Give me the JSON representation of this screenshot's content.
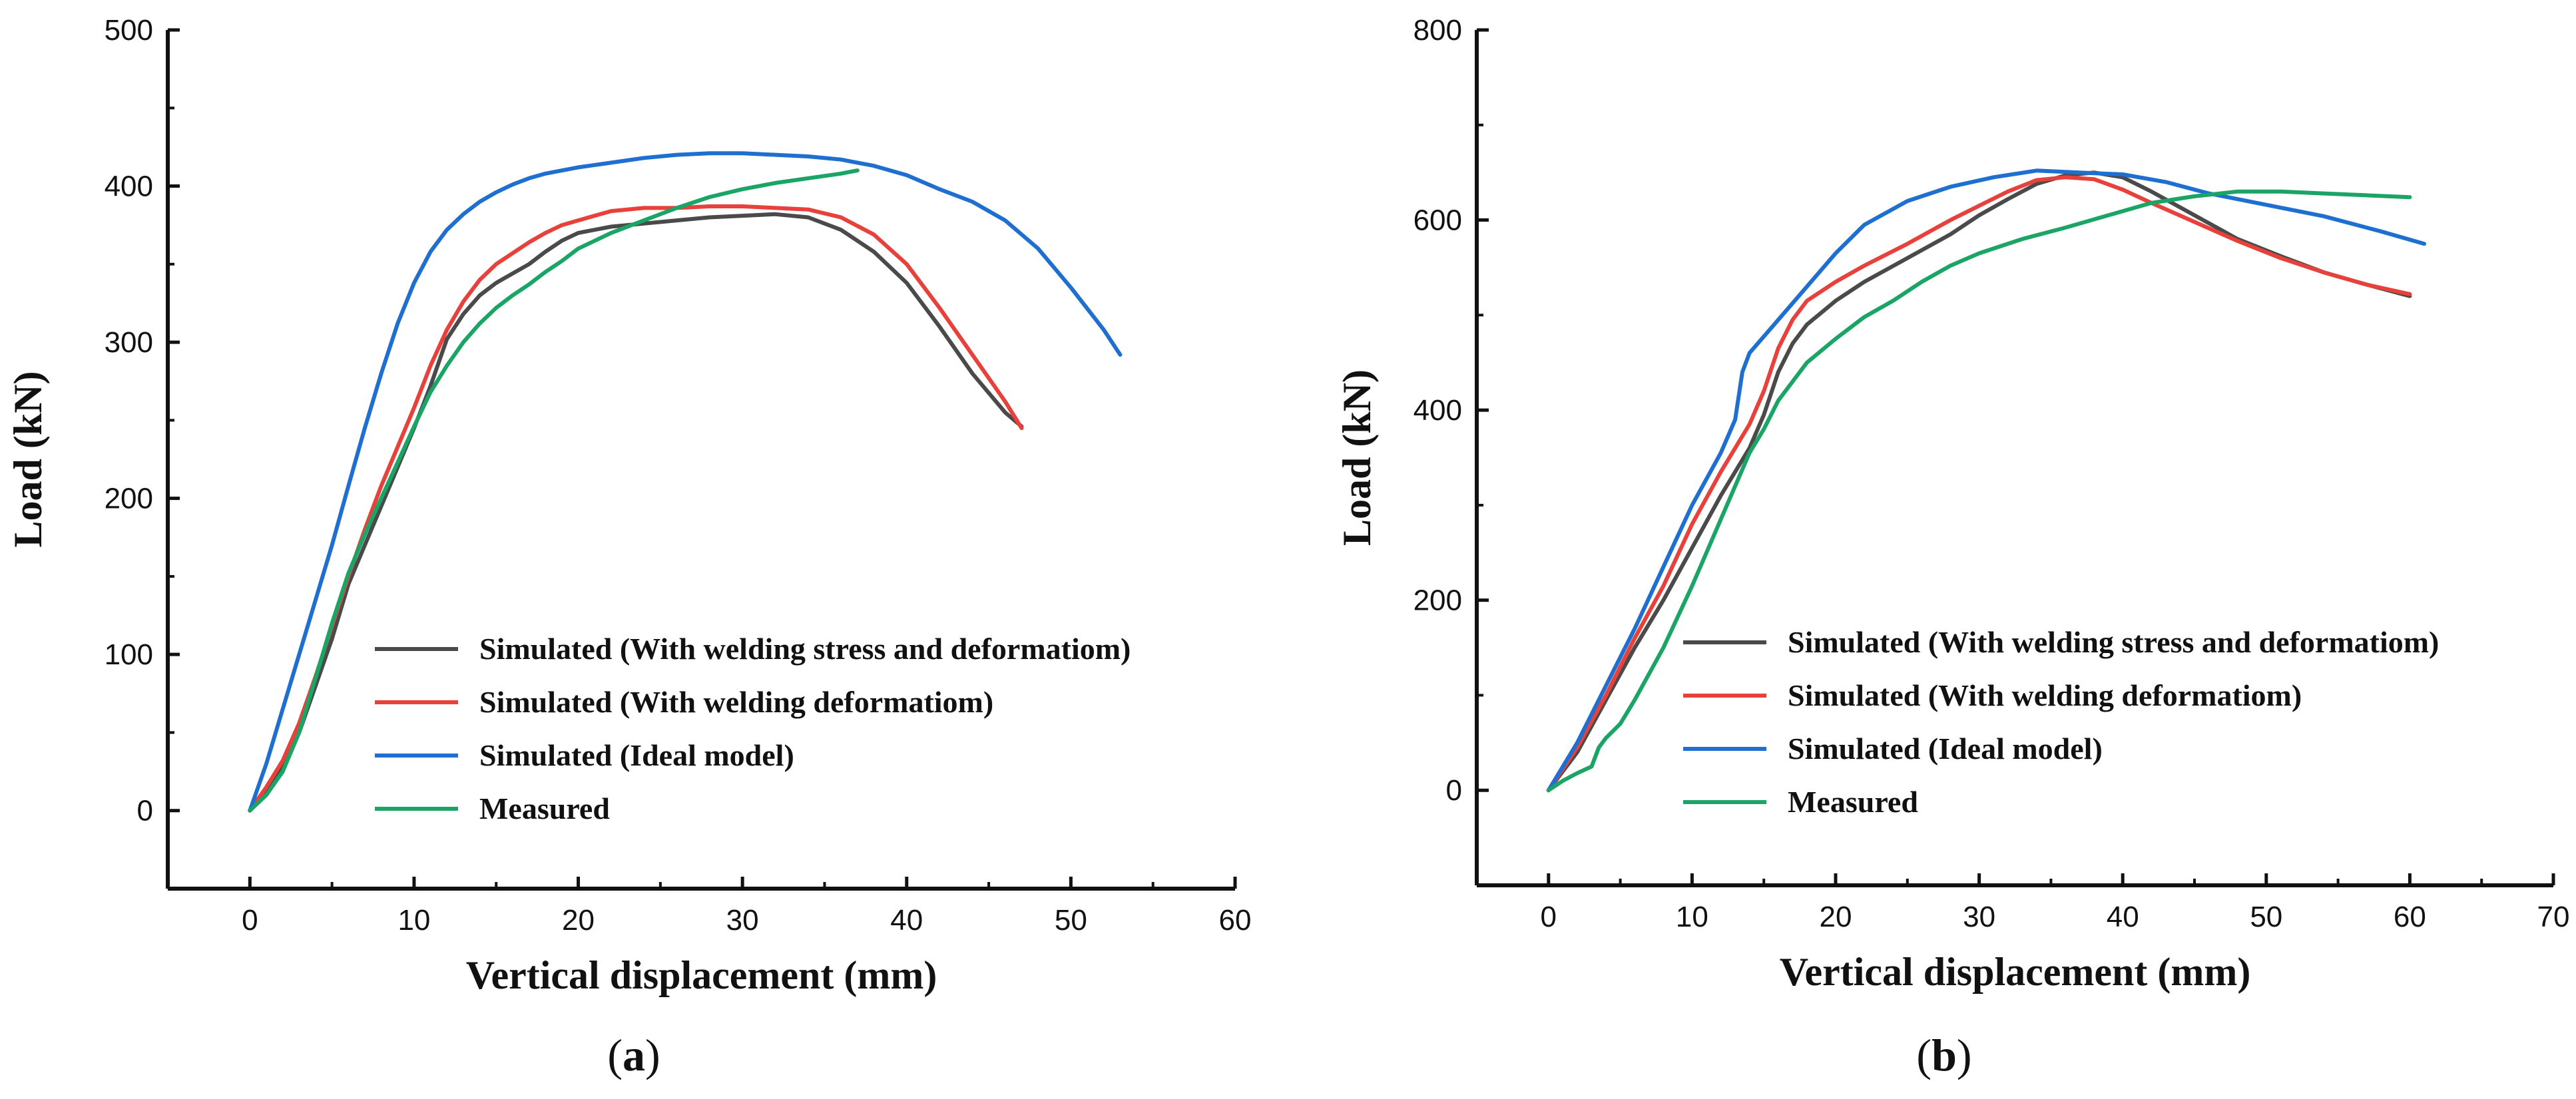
{
  "chart_data": [
    {
      "type": "line",
      "panel_label": "a",
      "xlabel": "Vertical displacement (mm)",
      "ylabel": "Load (kN)",
      "xlim": [
        -5,
        60
      ],
      "ylim": [
        -50,
        500
      ],
      "xticks": [
        0,
        10,
        20,
        30,
        40,
        50,
        60
      ],
      "yticks": [
        0,
        100,
        200,
        300,
        400,
        500
      ],
      "legend_position": "bottom-right",
      "series": [
        {
          "name": "Simulated (With welding stress and deformatiom)",
          "color": "#4a4a4a",
          "points": [
            [
              0,
              0
            ],
            [
              1,
              12
            ],
            [
              2,
              28
            ],
            [
              3,
              50
            ],
            [
              4,
              80
            ],
            [
              5,
              110
            ],
            [
              6,
              145
            ],
            [
              7,
              170
            ],
            [
              8,
              195
            ],
            [
              9,
              220
            ],
            [
              10,
              245
            ],
            [
              11,
              272
            ],
            [
              12,
              302
            ],
            [
              13,
              318
            ],
            [
              14,
              330
            ],
            [
              15,
              338
            ],
            [
              16,
              344
            ],
            [
              17,
              350
            ],
            [
              18,
              358
            ],
            [
              19,
              365
            ],
            [
              20,
              370
            ],
            [
              22,
              374
            ],
            [
              24,
              376
            ],
            [
              26,
              378
            ],
            [
              28,
              380
            ],
            [
              30,
              381
            ],
            [
              32,
              382
            ],
            [
              34,
              380
            ],
            [
              36,
              372
            ],
            [
              38,
              358
            ],
            [
              40,
              338
            ],
            [
              42,
              310
            ],
            [
              44,
              280
            ],
            [
              46,
              255
            ],
            [
              47,
              246
            ]
          ]
        },
        {
          "name": "Simulated (With welding deformatiom)",
          "color": "#e8413b",
          "points": [
            [
              0,
              0
            ],
            [
              1,
              15
            ],
            [
              2,
              32
            ],
            [
              3,
              56
            ],
            [
              4,
              86
            ],
            [
              5,
              118
            ],
            [
              6,
              150
            ],
            [
              7,
              180
            ],
            [
              8,
              208
            ],
            [
              9,
              233
            ],
            [
              10,
              258
            ],
            [
              11,
              285
            ],
            [
              12,
              308
            ],
            [
              13,
              326
            ],
            [
              14,
              340
            ],
            [
              15,
              350
            ],
            [
              16,
              357
            ],
            [
              17,
              364
            ],
            [
              18,
              370
            ],
            [
              19,
              375
            ],
            [
              20,
              378
            ],
            [
              22,
              384
            ],
            [
              24,
              386
            ],
            [
              26,
              386
            ],
            [
              28,
              387
            ],
            [
              30,
              387
            ],
            [
              32,
              386
            ],
            [
              34,
              385
            ],
            [
              36,
              380
            ],
            [
              38,
              369
            ],
            [
              40,
              350
            ],
            [
              42,
              322
            ],
            [
              44,
              292
            ],
            [
              46,
              262
            ],
            [
              47,
              245
            ]
          ]
        },
        {
          "name": "Simulated (Ideal model)",
          "color": "#1f6fd0",
          "points": [
            [
              0,
              0
            ],
            [
              1,
              30
            ],
            [
              2,
              65
            ],
            [
              3,
              100
            ],
            [
              4,
              135
            ],
            [
              5,
              170
            ],
            [
              6,
              208
            ],
            [
              7,
              245
            ],
            [
              8,
              280
            ],
            [
              9,
              312
            ],
            [
              10,
              338
            ],
            [
              11,
              358
            ],
            [
              12,
              372
            ],
            [
              13,
              382
            ],
            [
              14,
              390
            ],
            [
              15,
              396
            ],
            [
              16,
              401
            ],
            [
              17,
              405
            ],
            [
              18,
              408
            ],
            [
              20,
              412
            ],
            [
              22,
              415
            ],
            [
              24,
              418
            ],
            [
              26,
              420
            ],
            [
              28,
              421
            ],
            [
              30,
              421
            ],
            [
              32,
              420
            ],
            [
              34,
              419
            ],
            [
              36,
              417
            ],
            [
              38,
              413
            ],
            [
              40,
              407
            ],
            [
              42,
              398
            ],
            [
              44,
              390
            ],
            [
              46,
              378
            ],
            [
              48,
              360
            ],
            [
              50,
              335
            ],
            [
              52,
              308
            ],
            [
              53,
              292
            ]
          ]
        },
        {
          "name": "Measured",
          "color": "#1aa566",
          "points": [
            [
              0,
              0
            ],
            [
              1,
              10
            ],
            [
              2,
              25
            ],
            [
              3,
              50
            ],
            [
              4,
              85
            ],
            [
              5,
              120
            ],
            [
              6,
              152
            ],
            [
              7,
              177
            ],
            [
              8,
              200
            ],
            [
              9,
              223
            ],
            [
              10,
              246
            ],
            [
              11,
              268
            ],
            [
              12,
              285
            ],
            [
              13,
              300
            ],
            [
              14,
              312
            ],
            [
              15,
              322
            ],
            [
              16,
              330
            ],
            [
              17,
              337
            ],
            [
              18,
              345
            ],
            [
              19,
              352
            ],
            [
              20,
              360
            ],
            [
              22,
              370
            ],
            [
              24,
              378
            ],
            [
              26,
              386
            ],
            [
              28,
              393
            ],
            [
              30,
              398
            ],
            [
              32,
              402
            ],
            [
              34,
              405
            ],
            [
              36,
              408
            ],
            [
              37,
              410
            ]
          ]
        }
      ]
    },
    {
      "type": "line",
      "panel_label": "b",
      "xlabel": "Vertical displacement (mm)",
      "ylabel": "Load (kN)",
      "xlim": [
        -5,
        70
      ],
      "ylim": [
        -100,
        800
      ],
      "xticks": [
        0,
        10,
        20,
        30,
        40,
        50,
        60,
        70
      ],
      "yticks": [
        0,
        200,
        400,
        600,
        800
      ],
      "legend_position": "bottom-right",
      "series": [
        {
          "name": "Simulated (With welding stress and deformatiom)",
          "color": "#4a4a4a",
          "points": [
            [
              0,
              0
            ],
            [
              2,
              40
            ],
            [
              4,
              95
            ],
            [
              6,
              150
            ],
            [
              8,
              200
            ],
            [
              10,
              255
            ],
            [
              12,
              310
            ],
            [
              14,
              360
            ],
            [
              15,
              395
            ],
            [
              16,
              440
            ],
            [
              17,
              470
            ],
            [
              18,
              490
            ],
            [
              20,
              515
            ],
            [
              22,
              535
            ],
            [
              25,
              560
            ],
            [
              28,
              585
            ],
            [
              30,
              605
            ],
            [
              32,
              622
            ],
            [
              34,
              638
            ],
            [
              36,
              647
            ],
            [
              38,
              650
            ],
            [
              40,
              645
            ],
            [
              42,
              630
            ],
            [
              45,
              605
            ],
            [
              48,
              580
            ],
            [
              51,
              562
            ],
            [
              54,
              545
            ],
            [
              57,
              532
            ],
            [
              60,
              520
            ]
          ]
        },
        {
          "name": "Simulated (With welding deformatiom)",
          "color": "#e8413b",
          "points": [
            [
              0,
              0
            ],
            [
              2,
              45
            ],
            [
              4,
              100
            ],
            [
              6,
              160
            ],
            [
              8,
              215
            ],
            [
              10,
              280
            ],
            [
              12,
              335
            ],
            [
              14,
              385
            ],
            [
              15,
              420
            ],
            [
              16,
              465
            ],
            [
              17,
              495
            ],
            [
              18,
              515
            ],
            [
              20,
              535
            ],
            [
              22,
              552
            ],
            [
              25,
              575
            ],
            [
              28,
              600
            ],
            [
              30,
              615
            ],
            [
              32,
              630
            ],
            [
              34,
              642
            ],
            [
              36,
              645
            ],
            [
              38,
              643
            ],
            [
              40,
              632
            ],
            [
              42,
              618
            ],
            [
              45,
              598
            ],
            [
              48,
              578
            ],
            [
              51,
              560
            ],
            [
              54,
              545
            ],
            [
              57,
              532
            ],
            [
              60,
              522
            ]
          ]
        },
        {
          "name": "Simulated (Ideal model)",
          "color": "#1f6fd0",
          "points": [
            [
              0,
              0
            ],
            [
              2,
              50
            ],
            [
              4,
              110
            ],
            [
              6,
              170
            ],
            [
              8,
              235
            ],
            [
              10,
              300
            ],
            [
              12,
              355
            ],
            [
              13,
              390
            ],
            [
              13.5,
              440
            ],
            [
              14,
              460
            ],
            [
              16,
              495
            ],
            [
              18,
              530
            ],
            [
              20,
              565
            ],
            [
              22,
              595
            ],
            [
              25,
              620
            ],
            [
              28,
              635
            ],
            [
              31,
              645
            ],
            [
              34,
              652
            ],
            [
              37,
              650
            ],
            [
              40,
              648
            ],
            [
              43,
              640
            ],
            [
              46,
              628
            ],
            [
              50,
              616
            ],
            [
              54,
              604
            ],
            [
              58,
              588
            ],
            [
              61,
              575
            ]
          ]
        },
        {
          "name": "Measured",
          "color": "#1aa566",
          "points": [
            [
              0,
              0
            ],
            [
              1,
              10
            ],
            [
              2,
              18
            ],
            [
              3,
              25
            ],
            [
              3.5,
              45
            ],
            [
              4,
              55
            ],
            [
              5,
              70
            ],
            [
              6,
              95
            ],
            [
              8,
              150
            ],
            [
              10,
              215
            ],
            [
              12,
              285
            ],
            [
              14,
              355
            ],
            [
              15,
              380
            ],
            [
              16,
              410
            ],
            [
              17,
              430
            ],
            [
              18,
              450
            ],
            [
              20,
              475
            ],
            [
              22,
              498
            ],
            [
              24,
              515
            ],
            [
              26,
              535
            ],
            [
              28,
              552
            ],
            [
              30,
              565
            ],
            [
              33,
              580
            ],
            [
              36,
              592
            ],
            [
              39,
              605
            ],
            [
              42,
              618
            ],
            [
              45,
              625
            ],
            [
              48,
              630
            ],
            [
              51,
              630
            ],
            [
              54,
              628
            ],
            [
              57,
              626
            ],
            [
              60,
              624
            ]
          ]
        }
      ]
    }
  ]
}
